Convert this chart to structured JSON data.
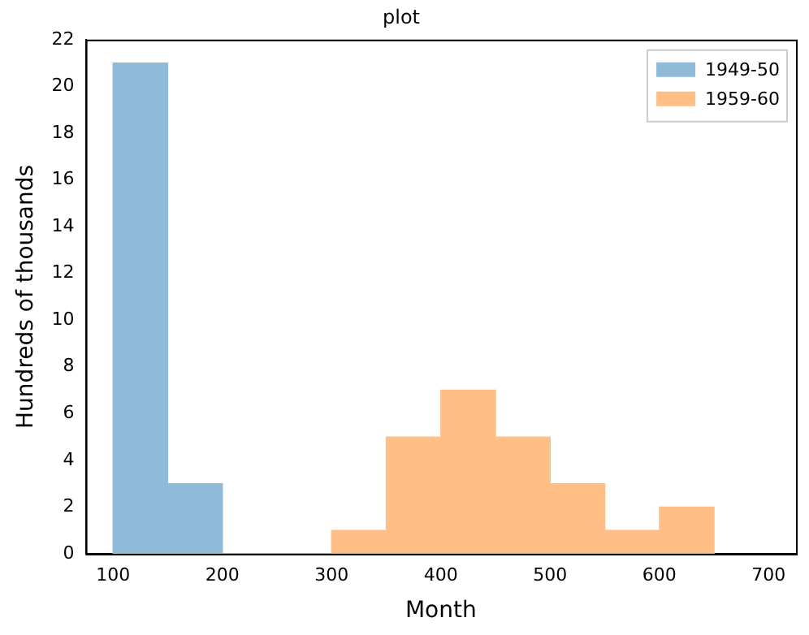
{
  "chart_data": {
    "type": "histogram",
    "title": "plot",
    "xlabel": "Month",
    "ylabel": "Hundreds of thousands",
    "bins": [
      100,
      150,
      200,
      250,
      300,
      350,
      400,
      450,
      500,
      550,
      600,
      650
    ],
    "series": [
      {
        "name": "1949-50",
        "color": "#8fbbd9",
        "values": [
          21,
          3,
          0,
          0,
          0,
          0,
          0,
          0,
          0,
          0,
          0
        ]
      },
      {
        "name": "1959-60",
        "color": "#ffbf86",
        "values": [
          0,
          0,
          0,
          0,
          1,
          5,
          7,
          5,
          3,
          1,
          2
        ]
      }
    ],
    "xlim": [
      75,
      725
    ],
    "xticks": [
      100,
      200,
      300,
      400,
      500,
      600,
      700
    ],
    "ylim": [
      0,
      22
    ],
    "yticks": [
      0,
      2,
      4,
      6,
      8,
      10,
      12,
      14,
      16,
      18,
      20,
      22
    ],
    "grid": false,
    "legend": "top right"
  }
}
